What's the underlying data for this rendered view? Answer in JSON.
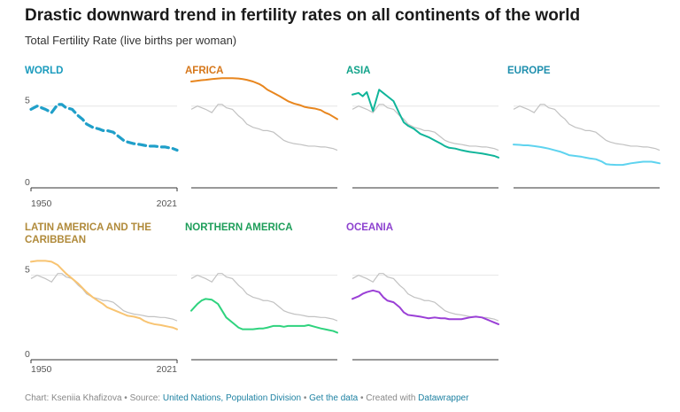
{
  "header": {
    "title": "Drastic downward trend in fertility rates on all continents of the world",
    "subtitle": "Total Fertility Rate (live births per woman)"
  },
  "footer": {
    "chart_prefix": "Chart: Kseniia Khafizova",
    "source_prefix": "Source:",
    "source_link": "United Nations, Population Division",
    "data_link": "Get the data",
    "created_prefix": "Created with",
    "created_link": "Datawrapper",
    "separator": "•"
  },
  "colors": {
    "world": "#1f9fc9",
    "africa": "#e8861e",
    "asia": "#10b59a",
    "europe": "#5ed3ef",
    "latin_america": "#f8c472",
    "northern_america": "#2fd37e",
    "oceania": "#9a3fd6",
    "reference_line": "#c2c2c2",
    "gridline": "#e6e6e6",
    "title_world": "#1a9bbd",
    "title_africa": "#d6771a",
    "title_asia": "#12a38a",
    "title_europe": "#1f8fae",
    "title_latin_america": "#b08a3a",
    "title_northern_america": "#1e9e5a",
    "title_oceania": "#8d42cf"
  },
  "chart_data": {
    "type": "line",
    "layout": "small-multiples",
    "x": [
      1950,
      1953,
      1955,
      1957,
      1960,
      1963,
      1965,
      1967,
      1970,
      1973,
      1975,
      1977,
      1980,
      1983,
      1985,
      1987,
      1990,
      1993,
      1995,
      1997,
      2000,
      2003,
      2005,
      2007,
      2010,
      2013,
      2015,
      2017,
      2019,
      2021
    ],
    "xticks": [
      "1950",
      "2021"
    ],
    "yticks": [
      "0",
      "5"
    ],
    "ylim": [
      0,
      6.5
    ],
    "reference_series": "World",
    "series": [
      {
        "name": "WORLD",
        "color_key": "world",
        "values": [
          4.8,
          5.0,
          4.9,
          4.8,
          4.6,
          5.1,
          5.1,
          4.9,
          4.8,
          4.4,
          4.2,
          3.9,
          3.7,
          3.6,
          3.5,
          3.5,
          3.4,
          3.1,
          2.9,
          2.8,
          2.7,
          2.65,
          2.6,
          2.55,
          2.55,
          2.5,
          2.5,
          2.45,
          2.4,
          2.3
        ]
      },
      {
        "name": "AFRICA",
        "color_key": "africa",
        "values": [
          6.5,
          6.55,
          6.58,
          6.6,
          6.65,
          6.68,
          6.7,
          6.7,
          6.7,
          6.68,
          6.65,
          6.6,
          6.5,
          6.35,
          6.2,
          6.0,
          5.8,
          5.6,
          5.45,
          5.3,
          5.15,
          5.05,
          4.95,
          4.9,
          4.85,
          4.75,
          4.6,
          4.5,
          4.35,
          4.2
        ]
      },
      {
        "name": "ASIA",
        "color_key": "asia",
        "values": [
          5.7,
          5.8,
          5.6,
          5.85,
          4.7,
          6.0,
          5.8,
          5.6,
          5.3,
          4.5,
          4.0,
          3.8,
          3.6,
          3.3,
          3.2,
          3.1,
          2.9,
          2.7,
          2.55,
          2.45,
          2.4,
          2.3,
          2.25,
          2.2,
          2.15,
          2.1,
          2.05,
          2.0,
          1.95,
          1.85
        ]
      },
      {
        "name": "EUROPE",
        "color_key": "europe",
        "values": [
          2.65,
          2.63,
          2.6,
          2.6,
          2.55,
          2.5,
          2.45,
          2.4,
          2.3,
          2.2,
          2.1,
          2.0,
          1.95,
          1.9,
          1.85,
          1.8,
          1.75,
          1.6,
          1.45,
          1.42,
          1.4,
          1.4,
          1.45,
          1.5,
          1.55,
          1.6,
          1.6,
          1.6,
          1.55,
          1.5
        ]
      },
      {
        "name": "LATIN AMERICA AND THE CARIBBEAN",
        "color_key": "latin_america",
        "values": [
          5.8,
          5.85,
          5.85,
          5.85,
          5.8,
          5.6,
          5.35,
          5.1,
          4.8,
          4.5,
          4.25,
          4.0,
          3.7,
          3.45,
          3.3,
          3.1,
          2.95,
          2.8,
          2.7,
          2.6,
          2.55,
          2.45,
          2.3,
          2.2,
          2.1,
          2.05,
          2.0,
          1.95,
          1.9,
          1.8
        ]
      },
      {
        "name": "NORTHERN AMERICA",
        "color_key": "northern_america",
        "values": [
          2.9,
          3.3,
          3.5,
          3.6,
          3.55,
          3.3,
          2.9,
          2.5,
          2.2,
          1.9,
          1.8,
          1.8,
          1.8,
          1.85,
          1.85,
          1.9,
          2.0,
          2.0,
          1.95,
          2.0,
          2.0,
          2.0,
          2.0,
          2.05,
          1.95,
          1.85,
          1.8,
          1.75,
          1.7,
          1.6
        ]
      },
      {
        "name": "OCEANIA",
        "color_key": "oceania",
        "values": [
          3.6,
          3.75,
          3.9,
          4.0,
          4.1,
          4.0,
          3.7,
          3.5,
          3.4,
          3.1,
          2.8,
          2.65,
          2.6,
          2.55,
          2.5,
          2.45,
          2.5,
          2.45,
          2.45,
          2.4,
          2.4,
          2.4,
          2.45,
          2.5,
          2.55,
          2.5,
          2.4,
          2.3,
          2.2,
          2.1
        ]
      }
    ]
  }
}
